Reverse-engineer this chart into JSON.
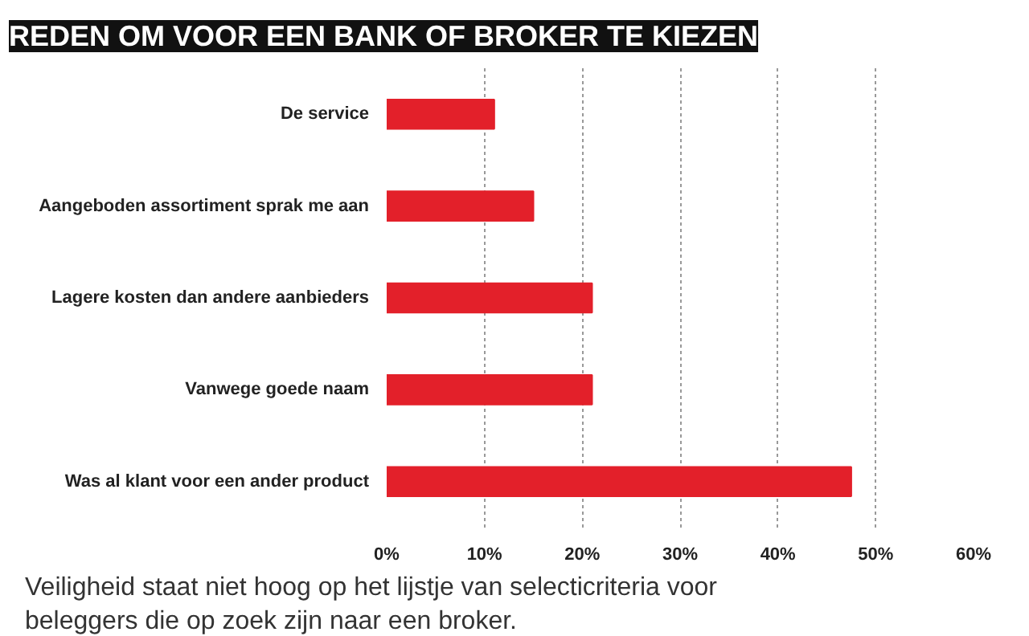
{
  "chart_data": {
    "type": "bar",
    "orientation": "horizontal",
    "title": "REDEN OM VOOR EEN BANK OF BROKER TE KIEZEN",
    "categories": [
      "De service",
      "Aangeboden assortiment sprak me aan",
      "Lagere kosten dan andere aanbieders",
      "Vanwege goede naam",
      "Was al klant voor een ander product"
    ],
    "values": [
      11,
      15,
      21,
      21,
      47.5
    ],
    "color": "#e3202a",
    "xlim": [
      0,
      60
    ],
    "xticks": [
      {
        "value": 0,
        "label": "0%"
      },
      {
        "value": 10,
        "label": "10%"
      },
      {
        "value": 20,
        "label": "20%"
      },
      {
        "value": 30,
        "label": "30%"
      },
      {
        "value": 40,
        "label": "40%"
      },
      {
        "value": 50,
        "label": "50%"
      },
      {
        "value": 60,
        "label": "60%"
      }
    ],
    "grid": "x",
    "annotations": [
      "Veiligheid staat niet hoog op het lijstje van selecticriteria voor beleggers die op zoek zijn naar een broker."
    ]
  }
}
